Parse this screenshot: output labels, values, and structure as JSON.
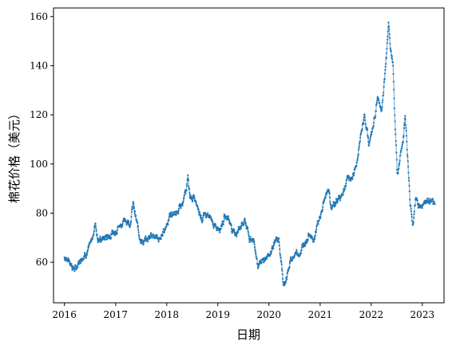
{
  "chart_data": {
    "type": "line",
    "title": "",
    "xlabel": "日期",
    "ylabel": "棉花价格（美元）",
    "x_ticks": [
      "2016",
      "2017",
      "2018",
      "2019",
      "2020",
      "2021",
      "2022",
      "2023"
    ],
    "y_ticks": [
      "60",
      "80",
      "100",
      "120",
      "140",
      "160"
    ],
    "xlim": [
      "2015-10-15",
      "2023-06-05"
    ],
    "ylim": [
      43.5,
      163.5
    ],
    "grid": false,
    "legend": "none",
    "series": [
      {
        "color": "#1f77b4",
        "marker": "dot",
        "x": [
          "2016-01-01",
          "2016-02-01",
          "2016-03-01",
          "2016-03-20",
          "2016-04-15",
          "2016-05-15",
          "2016-06-15",
          "2016-07-15",
          "2016-08-10",
          "2016-08-25",
          "2016-09-15",
          "2016-10-15",
          "2016-11-15",
          "2016-12-15",
          "2017-01-15",
          "2017-02-15",
          "2017-03-15",
          "2017-04-15",
          "2017-05-05",
          "2017-05-25",
          "2017-06-15",
          "2017-07-15",
          "2017-08-15",
          "2017-09-15",
          "2017-10-15",
          "2017-11-15",
          "2017-12-15",
          "2018-01-15",
          "2018-02-15",
          "2018-03-15",
          "2018-04-15",
          "2018-05-15",
          "2018-06-01",
          "2018-06-15",
          "2018-07-15",
          "2018-08-15",
          "2018-09-15",
          "2018-10-15",
          "2018-11-15",
          "2018-12-15",
          "2019-01-15",
          "2019-02-15",
          "2019-03-15",
          "2019-04-15",
          "2019-05-15",
          "2019-06-15",
          "2019-07-15",
          "2019-08-15",
          "2019-09-15",
          "2019-10-15",
          "2019-11-15",
          "2019-12-15",
          "2020-01-15",
          "2020-02-15",
          "2020-03-15",
          "2020-04-01",
          "2020-04-15",
          "2020-05-15",
          "2020-06-15",
          "2020-07-15",
          "2020-08-15",
          "2020-09-15",
          "2020-10-15",
          "2020-11-15",
          "2020-12-15",
          "2021-01-15",
          "2021-02-25",
          "2021-03-25",
          "2021-04-15",
          "2021-05-15",
          "2021-06-15",
          "2021-07-15",
          "2021-08-15",
          "2021-09-15",
          "2021-10-15",
          "2021-11-15",
          "2021-12-15",
          "2022-01-15",
          "2022-02-15",
          "2022-03-15",
          "2022-04-15",
          "2022-05-05",
          "2022-05-20",
          "2022-06-05",
          "2022-06-20",
          "2022-07-05",
          "2022-07-20",
          "2022-08-15",
          "2022-09-01",
          "2022-09-15",
          "2022-10-05",
          "2022-10-25",
          "2022-11-15",
          "2022-12-15",
          "2023-01-15",
          "2023-02-15",
          "2023-03-15",
          "2023-04-01"
        ],
        "y": [
          62,
          61,
          58,
          57,
          60,
          63,
          64,
          69,
          76,
          70,
          69,
          70,
          71,
          72,
          74,
          76,
          77,
          76,
          84,
          78,
          72,
          68,
          69,
          72,
          70,
          69,
          73,
          78,
          80,
          80,
          83,
          88,
          94,
          87,
          86,
          81,
          78,
          80,
          77,
          74,
          74,
          78,
          79,
          73,
          72,
          75,
          77,
          70,
          69,
          59,
          60,
          62,
          64,
          69,
          68,
          58,
          50,
          56,
          62,
          64,
          64,
          68,
          72,
          69,
          76,
          81,
          90,
          82,
          84,
          86,
          88,
          94,
          94,
          99,
          110,
          120,
          108,
          115,
          127,
          121,
          140,
          158,
          145,
          142,
          118,
          96,
          100,
          110,
          120,
          105,
          85,
          75,
          87,
          82,
          84,
          85,
          84,
          82
        ]
      }
    ]
  }
}
